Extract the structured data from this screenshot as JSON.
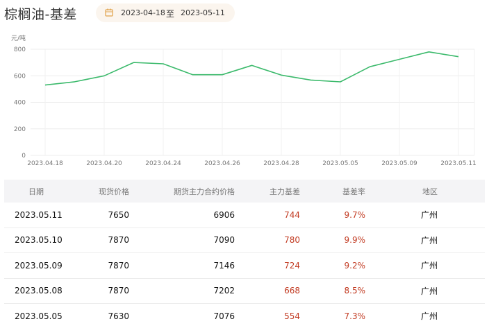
{
  "header": {
    "title": "棕榈油-基差",
    "date_start": "2023-04-18",
    "date_separator": "至",
    "date_end": "2023-05-11"
  },
  "colors": {
    "line": "#3cba6c",
    "accent_red": "#c23b22",
    "date_bg": "#fbf5ee",
    "calendar_icon": "#e0a24a"
  },
  "chart_data": {
    "type": "line",
    "ylabel": "元/吨",
    "ylim": [
      0,
      800
    ],
    "yticks": [
      0,
      200,
      400,
      600,
      800
    ],
    "x": [
      "2023.04.18",
      "2023.04.19",
      "2023.04.20",
      "2023.04.21",
      "2023.04.24",
      "2023.04.25",
      "2023.04.26",
      "2023.04.27",
      "2023.04.28",
      "2023.05.04",
      "2023.05.05",
      "2023.05.08",
      "2023.05.09",
      "2023.05.10",
      "2023.05.11"
    ],
    "xtick_labels": [
      "2023.04.18",
      "2023.04.20",
      "2023.04.24",
      "2023.04.26",
      "2023.04.28",
      "2023.05.05",
      "2023.05.09",
      "2023.05.11"
    ],
    "xtick_index": [
      0,
      2,
      4,
      6,
      8,
      10,
      12,
      14
    ],
    "series": [
      {
        "values": [
          530,
          555,
          600,
          700,
          690,
          608,
          608,
          678,
          605,
          568,
          554,
          668,
          724,
          780,
          744
        ]
      }
    ],
    "grid": true
  },
  "table": {
    "headers": [
      "日期",
      "现货价格",
      "期货主力合约价格",
      "主力基差",
      "基差率",
      "地区"
    ],
    "rows": [
      [
        "2023.05.11",
        "7650",
        "6906",
        "744",
        "9.7%",
        "广州"
      ],
      [
        "2023.05.10",
        "7870",
        "7090",
        "780",
        "9.9%",
        "广州"
      ],
      [
        "2023.05.09",
        "7870",
        "7146",
        "724",
        "9.2%",
        "广州"
      ],
      [
        "2023.05.08",
        "7870",
        "7202",
        "668",
        "8.5%",
        "广州"
      ],
      [
        "2023.05.05",
        "7630",
        "7076",
        "554",
        "7.3%",
        "广州"
      ]
    ]
  }
}
